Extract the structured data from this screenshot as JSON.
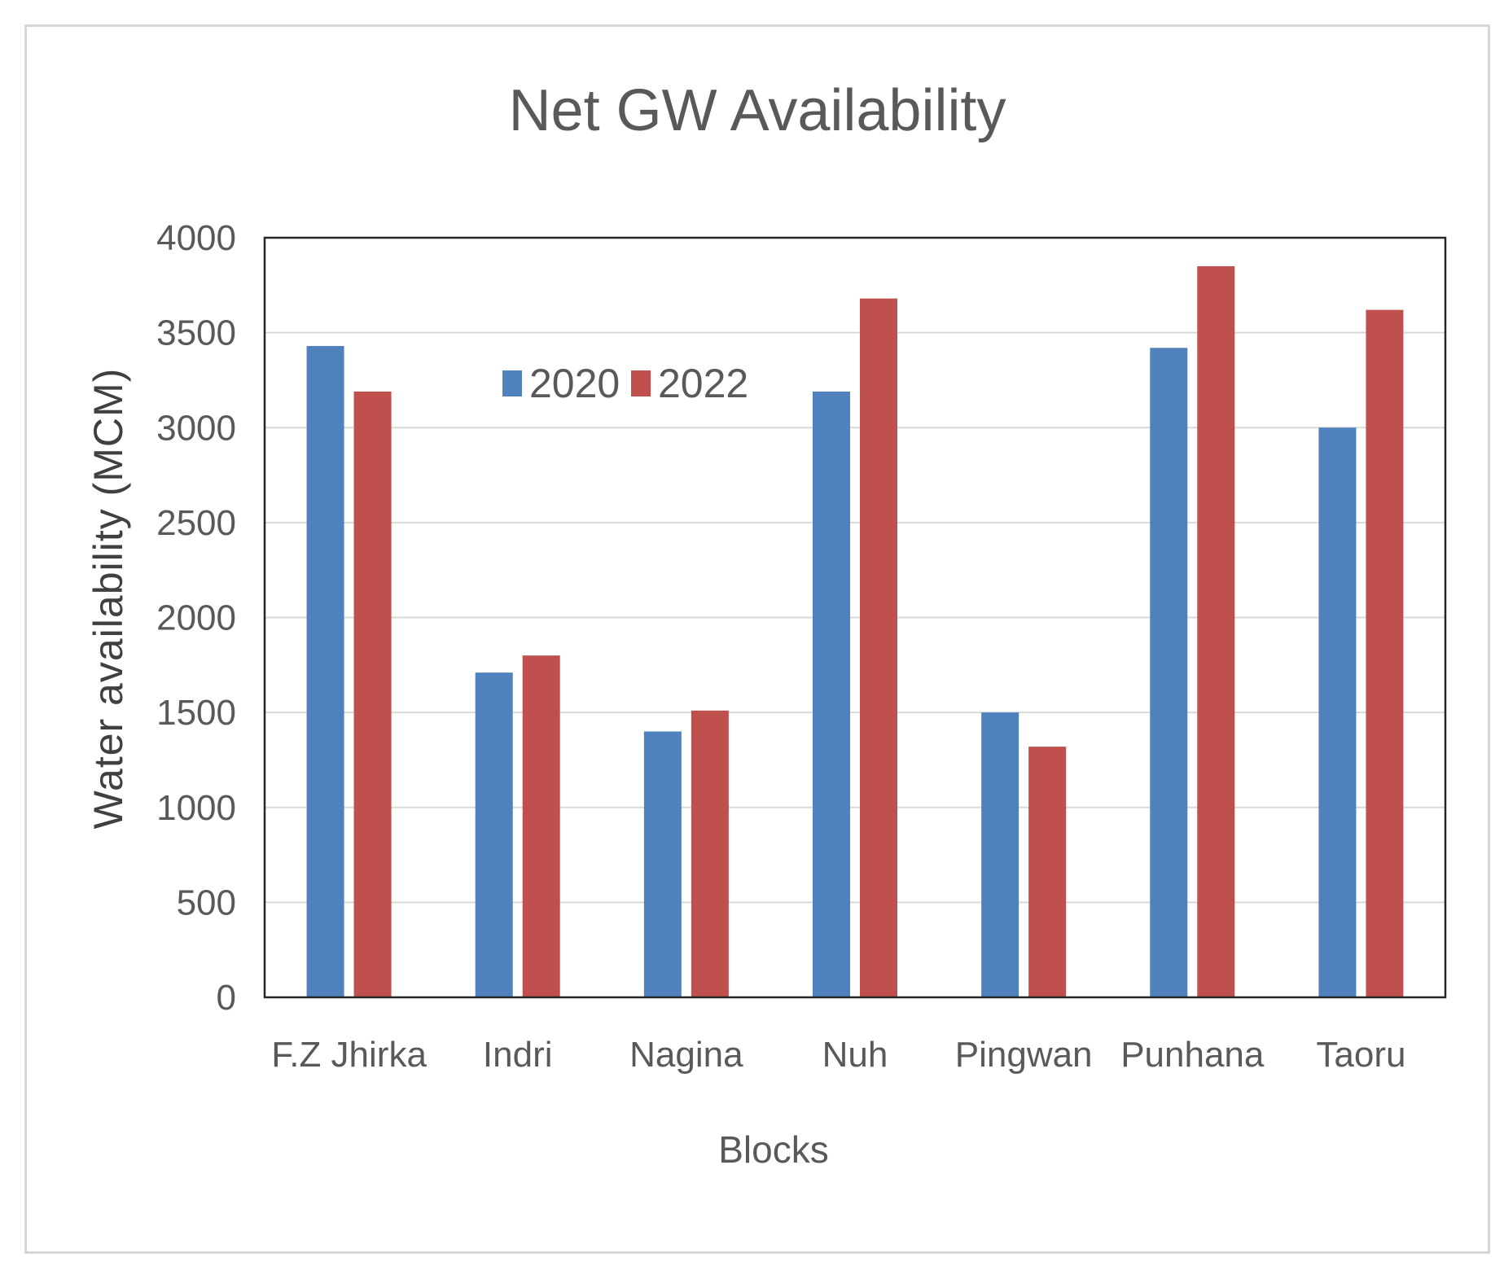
{
  "chart_data": {
    "type": "bar",
    "title": "Net GW Availability",
    "xlabel": "Blocks",
    "ylabel": "Water availability (MCM)",
    "categories": [
      "F.Z Jhirka",
      "Indri",
      "Nagina",
      "Nuh",
      "Pingwan",
      "Punhana",
      "Taoru"
    ],
    "series": [
      {
        "name": "2020",
        "color": "#4F81BD",
        "values": [
          3430,
          1710,
          1400,
          3190,
          1500,
          3420,
          3000
        ]
      },
      {
        "name": "2022",
        "color": "#C0504D",
        "values": [
          3190,
          1800,
          1510,
          3680,
          1320,
          3850,
          3620
        ]
      }
    ],
    "ylim": [
      0,
      4000
    ],
    "yticks": [
      0,
      500,
      1000,
      1500,
      2000,
      2500,
      3000,
      3500,
      4000
    ],
    "grid": true,
    "legend": "top-center inside plot"
  }
}
